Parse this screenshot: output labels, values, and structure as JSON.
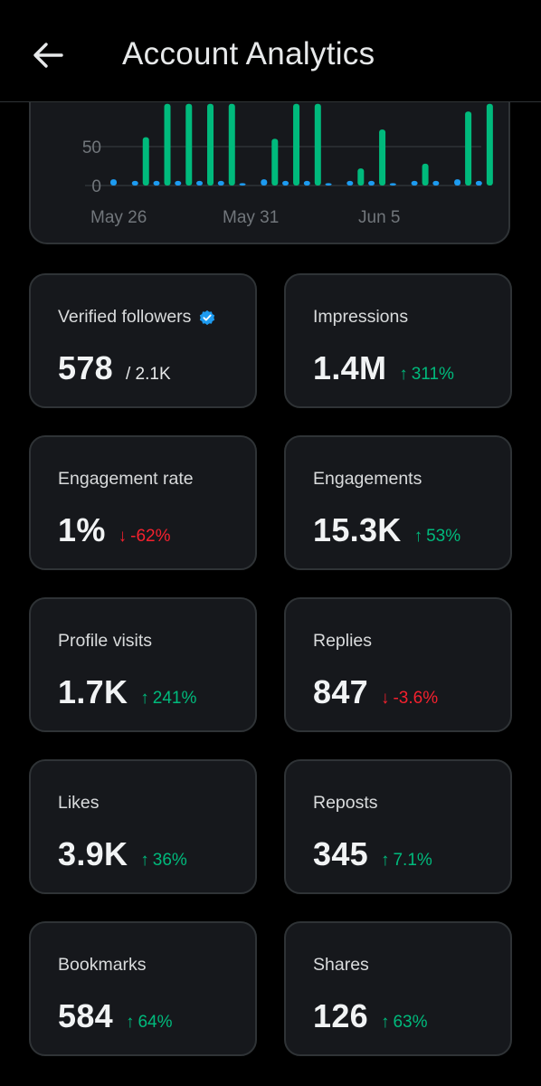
{
  "header": {
    "title": "Account Analytics",
    "back_icon": "arrow-left-icon"
  },
  "colors": {
    "background": "#000000",
    "card": "#16181c",
    "card_border": "#2f3336",
    "bar_green": "#00ba7c",
    "bar_blue": "#1d9bf0",
    "up": "#00ba7c",
    "down": "#f4212e"
  },
  "chart_data": {
    "type": "bar",
    "x_tick_labels": [
      "May 26",
      "May 31",
      "Jun 5"
    ],
    "y_tick_labels": [
      "50",
      "0"
    ],
    "ylim": [
      0,
      105
    ],
    "grid": true,
    "series": [
      {
        "color": "#00ba7c",
        "values": [
          1,
          62,
          105,
          105,
          105,
          105,
          1,
          60,
          105,
          105,
          1,
          22,
          72,
          1,
          28,
          1,
          95,
          105
        ]
      },
      {
        "color": "#1d9bf0",
        "values": [
          8,
          6,
          6,
          6,
          6,
          6,
          3,
          8,
          6,
          6,
          3,
          6,
          6,
          3,
          6,
          6,
          8,
          6
        ]
      }
    ]
  },
  "cards": [
    {
      "label": "Verified followers",
      "value": "578",
      "sub": "/ 2.1K",
      "label_icon": "verified-badge-icon"
    },
    {
      "label": "Impressions",
      "value": "1.4M",
      "delta": "311%",
      "direction": "up"
    },
    {
      "label": "Engagement rate",
      "value": "1%",
      "delta": "-62%",
      "direction": "down"
    },
    {
      "label": "Engagements",
      "value": "15.3K",
      "delta": "53%",
      "direction": "up"
    },
    {
      "label": "Profile visits",
      "value": "1.7K",
      "delta": "241%",
      "direction": "up"
    },
    {
      "label": "Replies",
      "value": "847",
      "delta": "-3.6%",
      "direction": "down"
    },
    {
      "label": "Likes",
      "value": "3.9K",
      "delta": "36%",
      "direction": "up"
    },
    {
      "label": "Reposts",
      "value": "345",
      "delta": "7.1%",
      "direction": "up"
    },
    {
      "label": "Bookmarks",
      "value": "584",
      "delta": "64%",
      "direction": "up"
    },
    {
      "label": "Shares",
      "value": "126",
      "delta": "63%",
      "direction": "up"
    }
  ]
}
